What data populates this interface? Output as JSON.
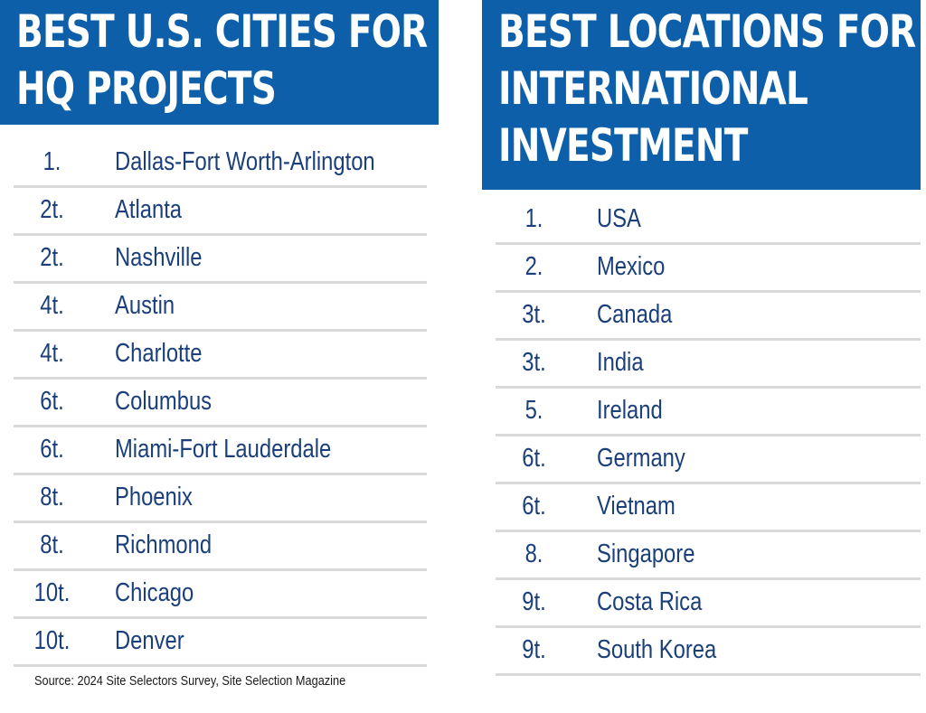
{
  "left_panel": {
    "title_lines": [
      "BEST U.S. CITIES FOR",
      "HQ PROJECTS"
    ],
    "rows": [
      {
        "rank": "1.",
        "name": "Dallas-Fort Worth-Arlington"
      },
      {
        "rank": "2t.",
        "name": "Atlanta"
      },
      {
        "rank": "2t.",
        "name": "Nashville"
      },
      {
        "rank": "4t.",
        "name": "Austin"
      },
      {
        "rank": "4t.",
        "name": "Charlotte"
      },
      {
        "rank": "6t.",
        "name": "Columbus"
      },
      {
        "rank": "6t.",
        "name": "Miami-Fort Lauderdale"
      },
      {
        "rank": "8t.",
        "name": "Phoenix"
      },
      {
        "rank": "8t.",
        "name": "Richmond"
      },
      {
        "rank": "10t.",
        "name": "Chicago"
      },
      {
        "rank": "10t.",
        "name": "Denver"
      }
    ],
    "source": "Source: 2024 Site Selectors Survey, Site Selection Magazine"
  },
  "right_panel": {
    "title_lines": [
      "BEST LOCATIONS FOR",
      "INTERNATIONAL",
      "INVESTMENT"
    ],
    "rows": [
      {
        "rank": "1.",
        "name": "USA"
      },
      {
        "rank": "2.",
        "name": "Mexico"
      },
      {
        "rank": "3t.",
        "name": "Canada"
      },
      {
        "rank": "3t.",
        "name": "India"
      },
      {
        "rank": "5.",
        "name": "Ireland"
      },
      {
        "rank": "6t.",
        "name": "Germany"
      },
      {
        "rank": "6t.",
        "name": "Vietnam"
      },
      {
        "rank": "8.",
        "name": "Singapore"
      },
      {
        "rank": "9t.",
        "name": "Costa Rica"
      },
      {
        "rank": "9t.",
        "name": "South Korea"
      }
    ]
  },
  "colors": {
    "banner": "#0c5fa8",
    "text": "#1a3f7a",
    "divider": "#d9d9d9"
  }
}
